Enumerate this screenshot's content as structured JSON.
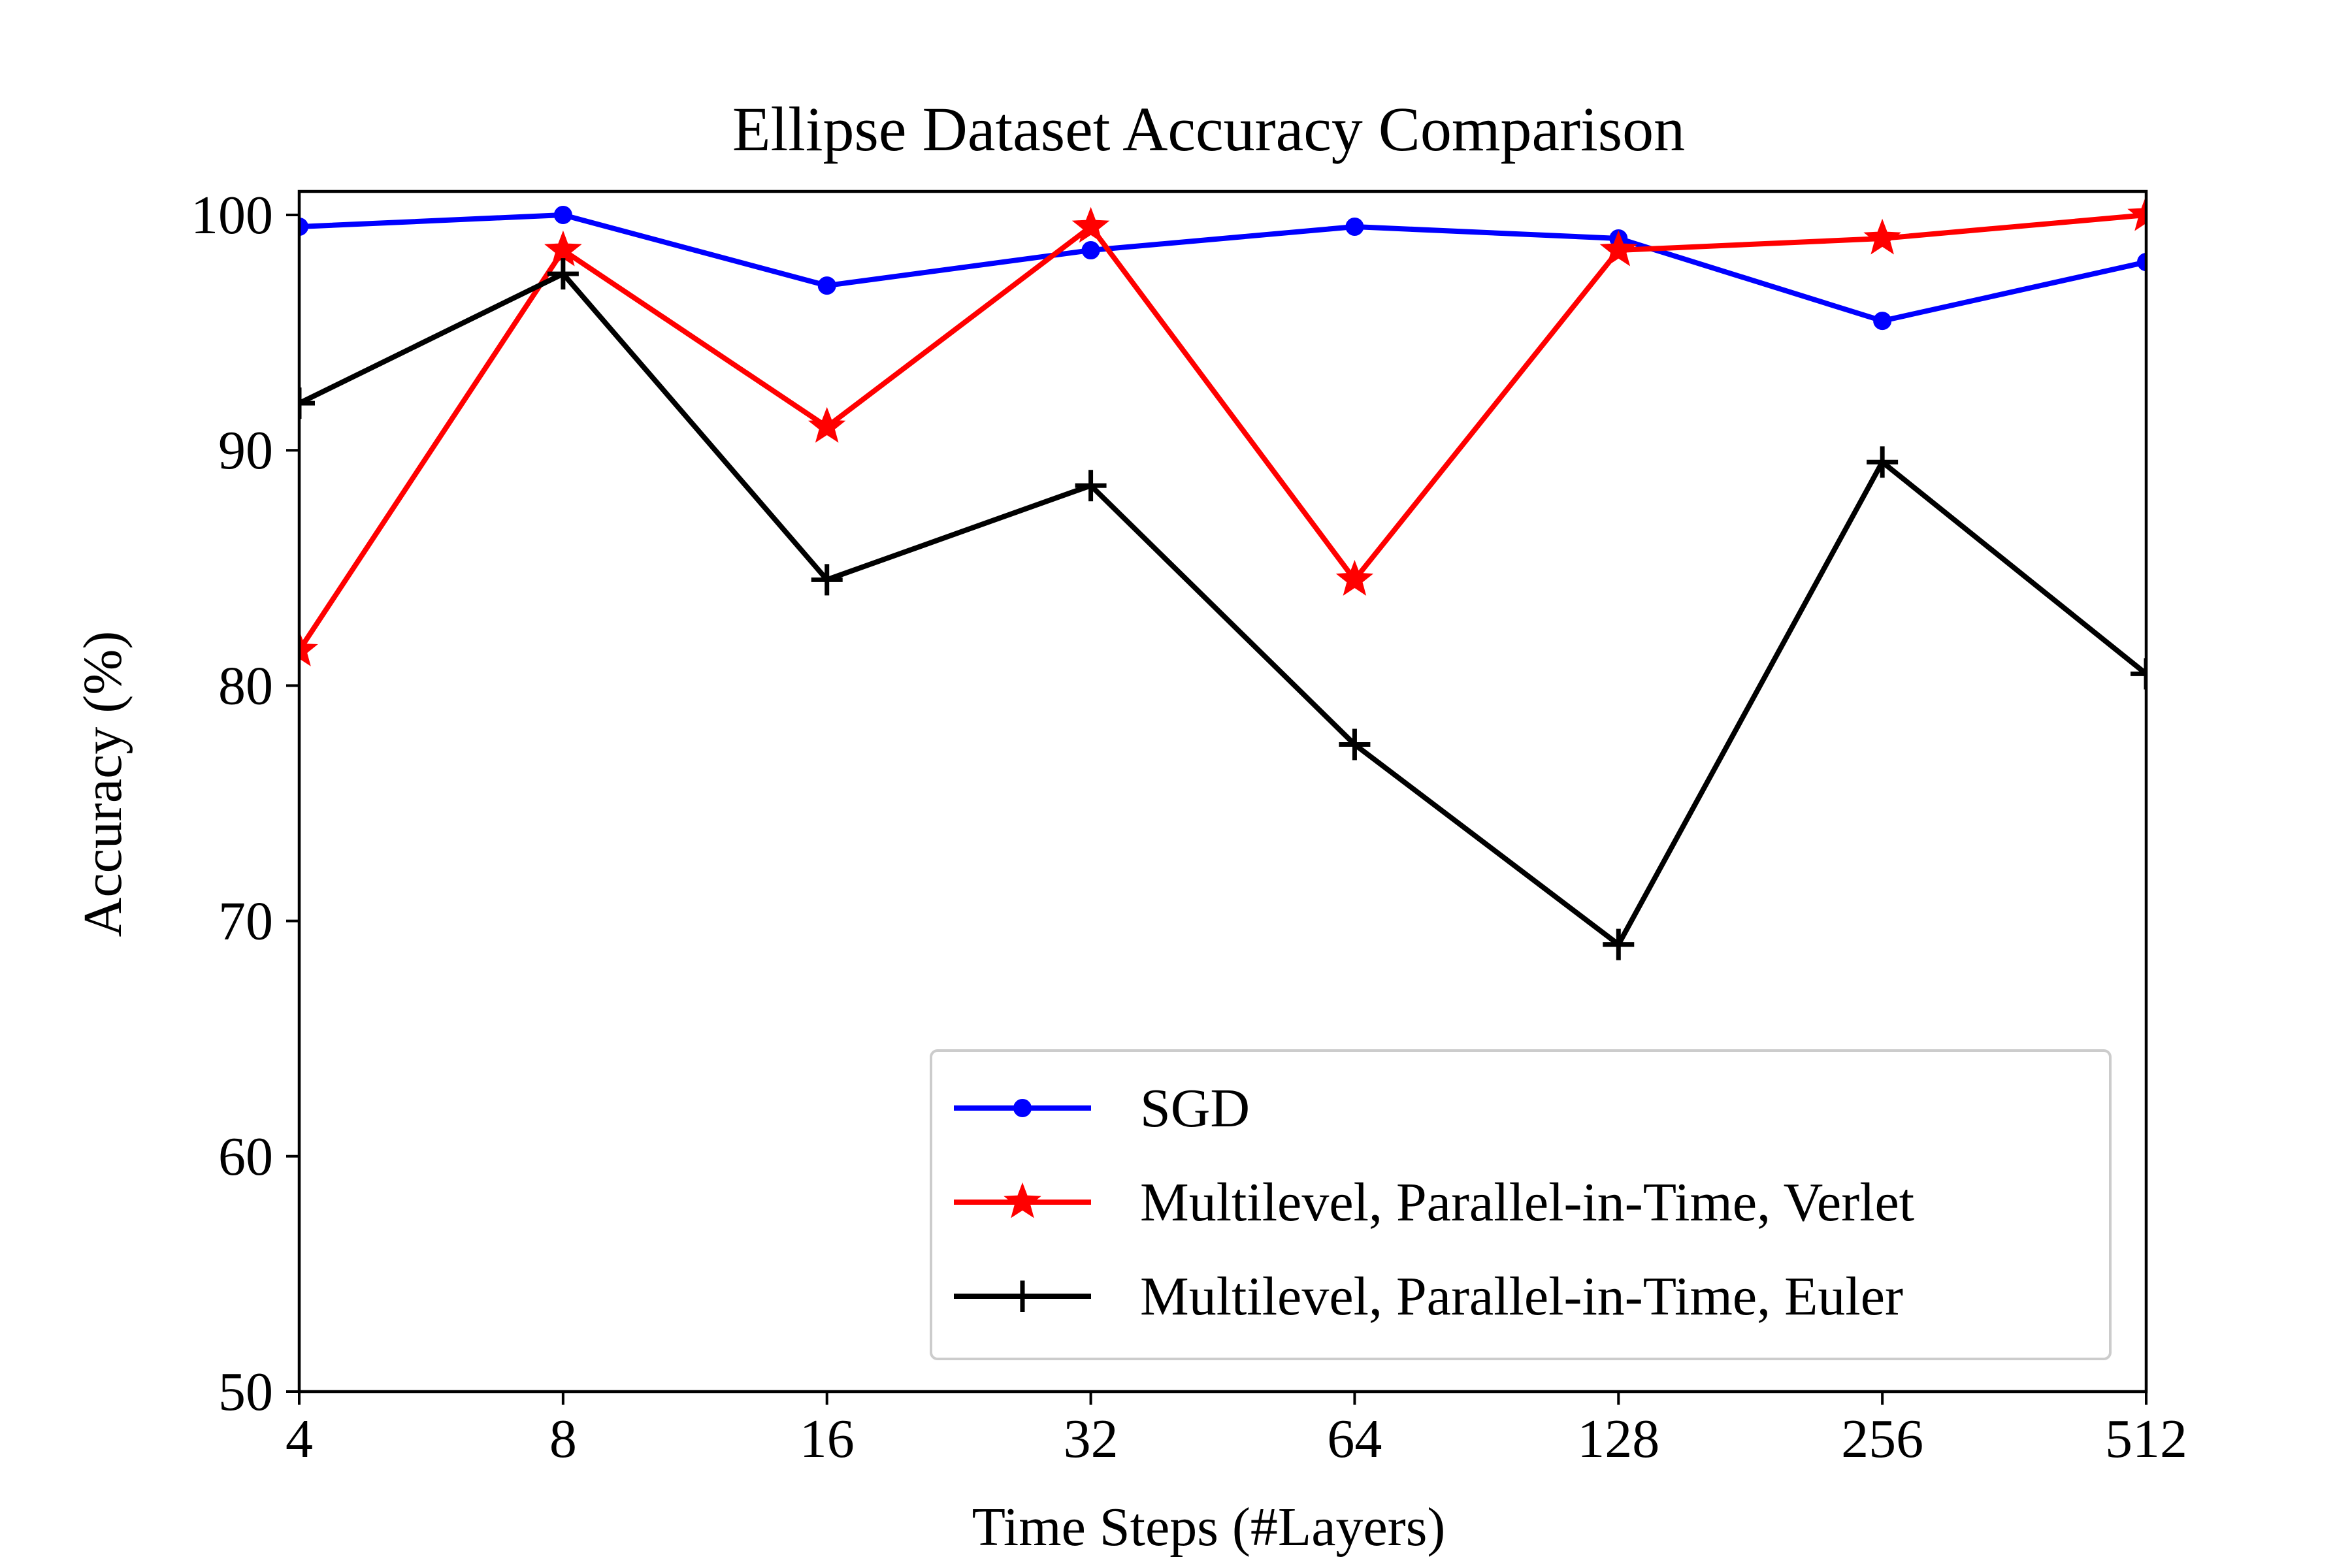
{
  "chart_data": {
    "type": "line",
    "title": "Ellipse Dataset Accuracy Comparison",
    "xlabel": "Time Steps (#Layers)",
    "ylabel": "Accuracy (%)",
    "categories": [
      "4",
      "8",
      "16",
      "32",
      "64",
      "128",
      "256",
      "512"
    ],
    "yticks": [
      "50",
      "60",
      "70",
      "80",
      "90",
      "100"
    ],
    "ylim": [
      50,
      101
    ],
    "grid": false,
    "legend_position": "lower-right",
    "series": [
      {
        "name": "SGD",
        "color": "#0000ff",
        "marker": "circle",
        "values": [
          99.5,
          100,
          97,
          98.5,
          99.5,
          99,
          95.5,
          98
        ]
      },
      {
        "name": "Multilevel, Parallel-in-Time, Verlet",
        "color": "#ff0000",
        "marker": "star",
        "values": [
          81.5,
          98.5,
          91,
          99.5,
          84.5,
          98.5,
          99,
          100
        ]
      },
      {
        "name": "Multilevel, Parallel-in-Time, Euler",
        "color": "#000000",
        "marker": "plus",
        "values": [
          92,
          97.5,
          84.5,
          88.5,
          77.5,
          69,
          89.5,
          80.5
        ]
      }
    ]
  }
}
